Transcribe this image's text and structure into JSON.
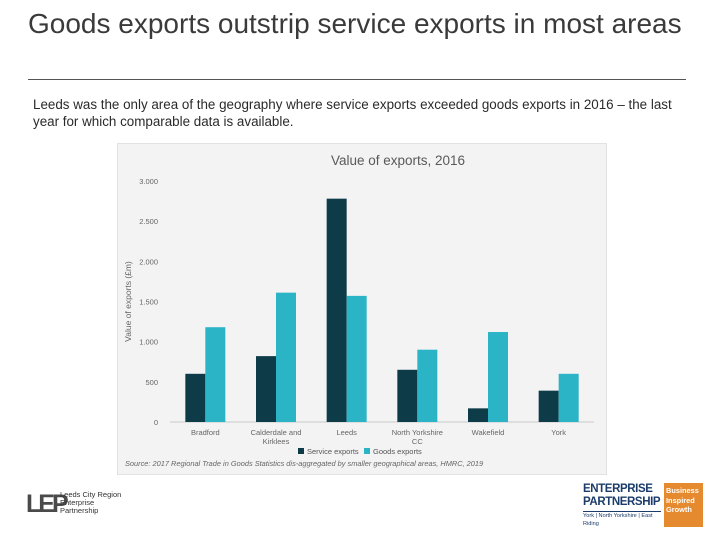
{
  "slide": {
    "title": "Goods exports outstrip service exports in most areas",
    "intro": "Leeds was the only area of the geography where service exports exceeded goods exports in 2016 – the last year for which comparable data is available."
  },
  "chart_data": {
    "type": "bar",
    "title": "Value of exports, 2016",
    "xlabel": "",
    "ylabel": "Value of exports (£m)",
    "ylim": [
      0,
      3000
    ],
    "yticks": [
      0,
      500,
      1000,
      1500,
      2000,
      2500,
      3000
    ],
    "ytick_labels": [
      "0",
      "500",
      "1.000",
      "1.500",
      "2.000",
      "2.500",
      "3.000"
    ],
    "categories": [
      [
        "Bradford"
      ],
      [
        "Calderdale and",
        "Kirklees"
      ],
      [
        "Leeds"
      ],
      [
        "North Yorkshire",
        "CC"
      ],
      [
        "Wakefield"
      ],
      [
        "York"
      ]
    ],
    "series": [
      {
        "name": "Service exports",
        "color": "#0e3b48",
        "values": [
          600,
          820,
          2780,
          650,
          170,
          390
        ]
      },
      {
        "name": "Goods exports",
        "color": "#2bb3c6",
        "values": [
          1180,
          1610,
          1570,
          900,
          1120,
          600
        ]
      }
    ],
    "legend": "bottom",
    "source": "Source: 2017 Regional Trade in Goods Statistics dis-aggregated by smaller geographical areas, HMRC, 2019"
  },
  "logos": {
    "lep_mark": "LEP",
    "lep_lines": [
      "Leeds City Region",
      "Enterprise",
      "Partnership"
    ],
    "ep_line1": "ENTERPRISE",
    "ep_line2": "PARTNERSHIP",
    "ep_line3": "York | North Yorkshire | East Riding",
    "ep_badge": [
      "Business",
      "Inspired",
      "Growth"
    ]
  },
  "colors": {
    "title_text": "#3a3a3a",
    "chart_bg": "#f3f3f3",
    "ep_blue": "#1b3c6b",
    "ep_orange": "#e58a2e"
  }
}
